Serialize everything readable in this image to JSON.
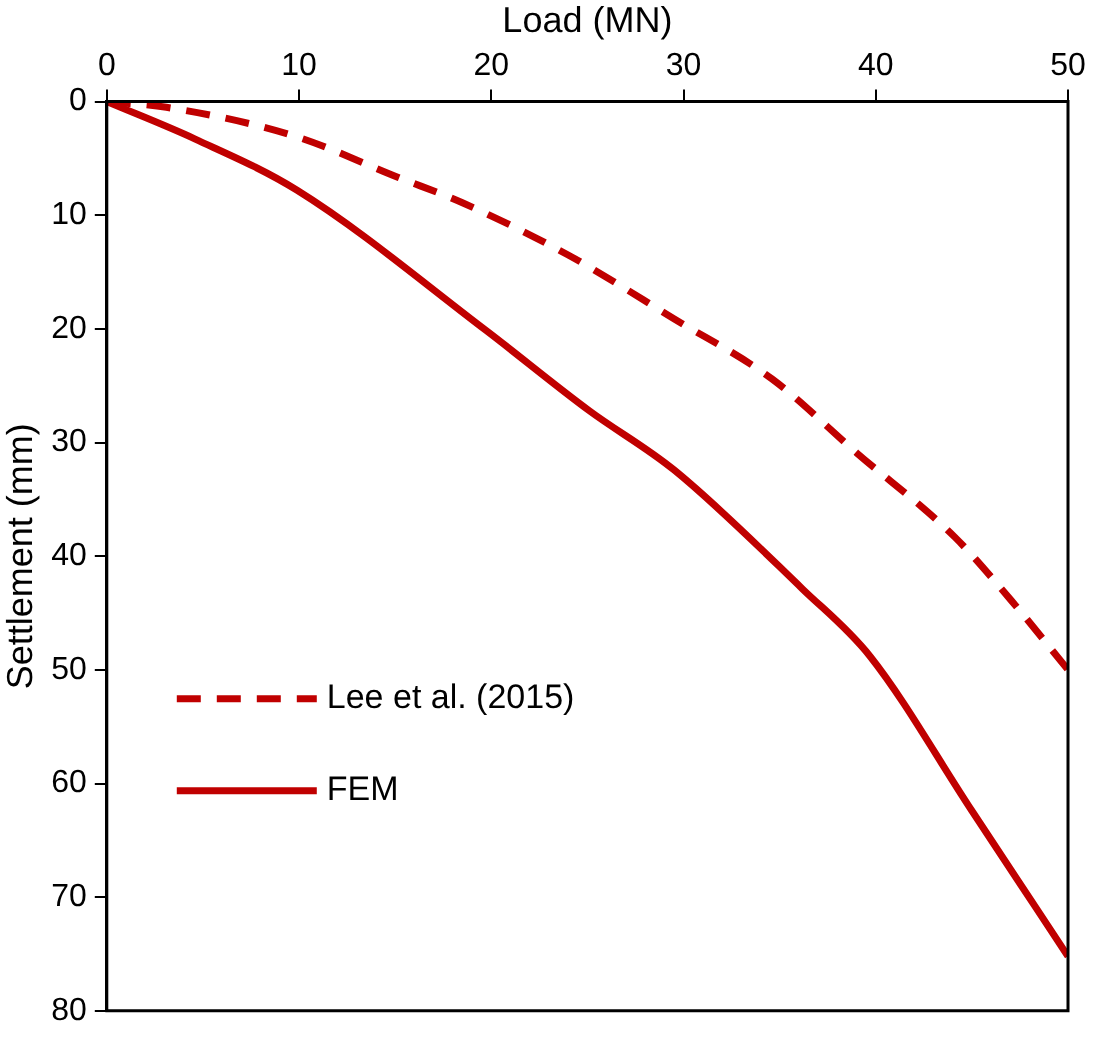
{
  "chart_data": {
    "type": "line",
    "xlabel": "Load (MN)",
    "ylabel": "Settlement (mm)",
    "xlim": [
      0,
      50
    ],
    "xticks": [
      0,
      10,
      20,
      30,
      40,
      50
    ],
    "ylim": [
      80,
      0
    ],
    "yticks": [
      0,
      10,
      20,
      30,
      40,
      50,
      60,
      70,
      80
    ],
    "grid": false,
    "legend": "bottom left",
    "marker": "none",
    "series": [
      {
        "name": "Lee et al. (2015)",
        "color": "#c00000",
        "line_style": "dashed",
        "x": [
          0,
          3.1,
          9.7,
          15.2,
          18.5,
          24,
          29.5,
          34.6,
          39,
          44.1,
          47,
          50
        ],
        "values": [
          0,
          0.5,
          3,
          6.7,
          8.9,
          13.5,
          19.1,
          24.4,
          30.9,
          38.3,
          43.8,
          50
        ]
      },
      {
        "name": "FEM",
        "color": "#c00000",
        "line_style": "solid",
        "x": [
          0,
          4.6,
          9.9,
          19.7,
          25.1,
          29.5,
          36.2,
          39.7,
          45,
          50
        ],
        "values": [
          0,
          3.3,
          7.8,
          20.1,
          27.2,
          32.4,
          42.9,
          48.8,
          62.4,
          75.2
        ]
      }
    ]
  }
}
